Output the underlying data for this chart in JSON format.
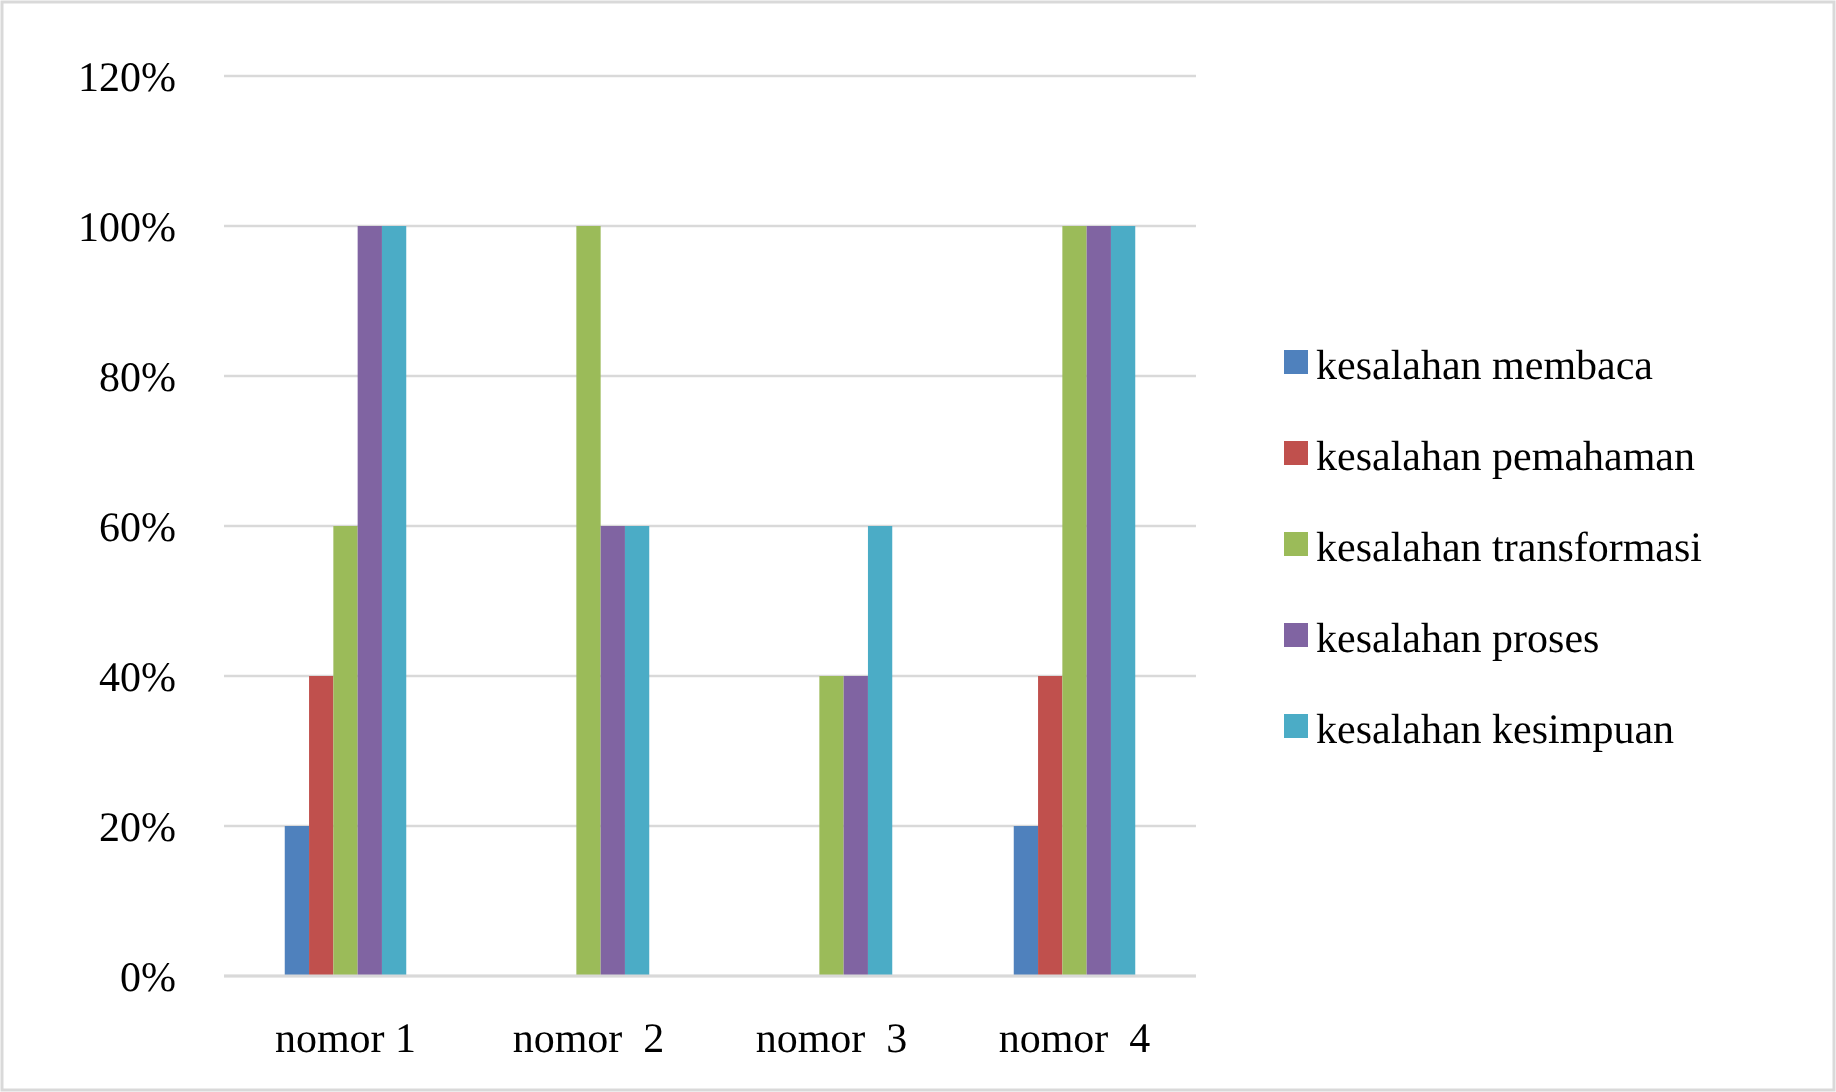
{
  "chart_data": {
    "type": "bar",
    "categories": [
      "nomor 1",
      "nomor  2",
      "nomor  3",
      "nomor  4"
    ],
    "series": [
      {
        "name": "kesalahan membaca",
        "color": "#4f81bd",
        "values": [
          20,
          0,
          0,
          20
        ]
      },
      {
        "name": "kesalahan pemahaman",
        "color": "#c0504d",
        "values": [
          40,
          0,
          0,
          40
        ]
      },
      {
        "name": "kesalahan transformasi",
        "color": "#9bbb59",
        "values": [
          60,
          100,
          40,
          100
        ]
      },
      {
        "name": "kesalahan proses",
        "color": "#8064a2",
        "values": [
          100,
          60,
          40,
          100
        ]
      },
      {
        "name": "kesalahan kesimpuan",
        "color": "#4bacc6",
        "values": [
          100,
          60,
          60,
          100
        ]
      }
    ],
    "ylim": [
      0,
      120
    ],
    "yticks": [
      {
        "value": 0,
        "label": "0%"
      },
      {
        "value": 20,
        "label": "20%"
      },
      {
        "value": 40,
        "label": "40%"
      },
      {
        "value": 60,
        "label": "60%"
      },
      {
        "value": 80,
        "label": "80%"
      },
      {
        "value": 100,
        "label": "100%"
      },
      {
        "value": 120,
        "label": "120%"
      }
    ],
    "grid": "y",
    "legend": "right"
  }
}
